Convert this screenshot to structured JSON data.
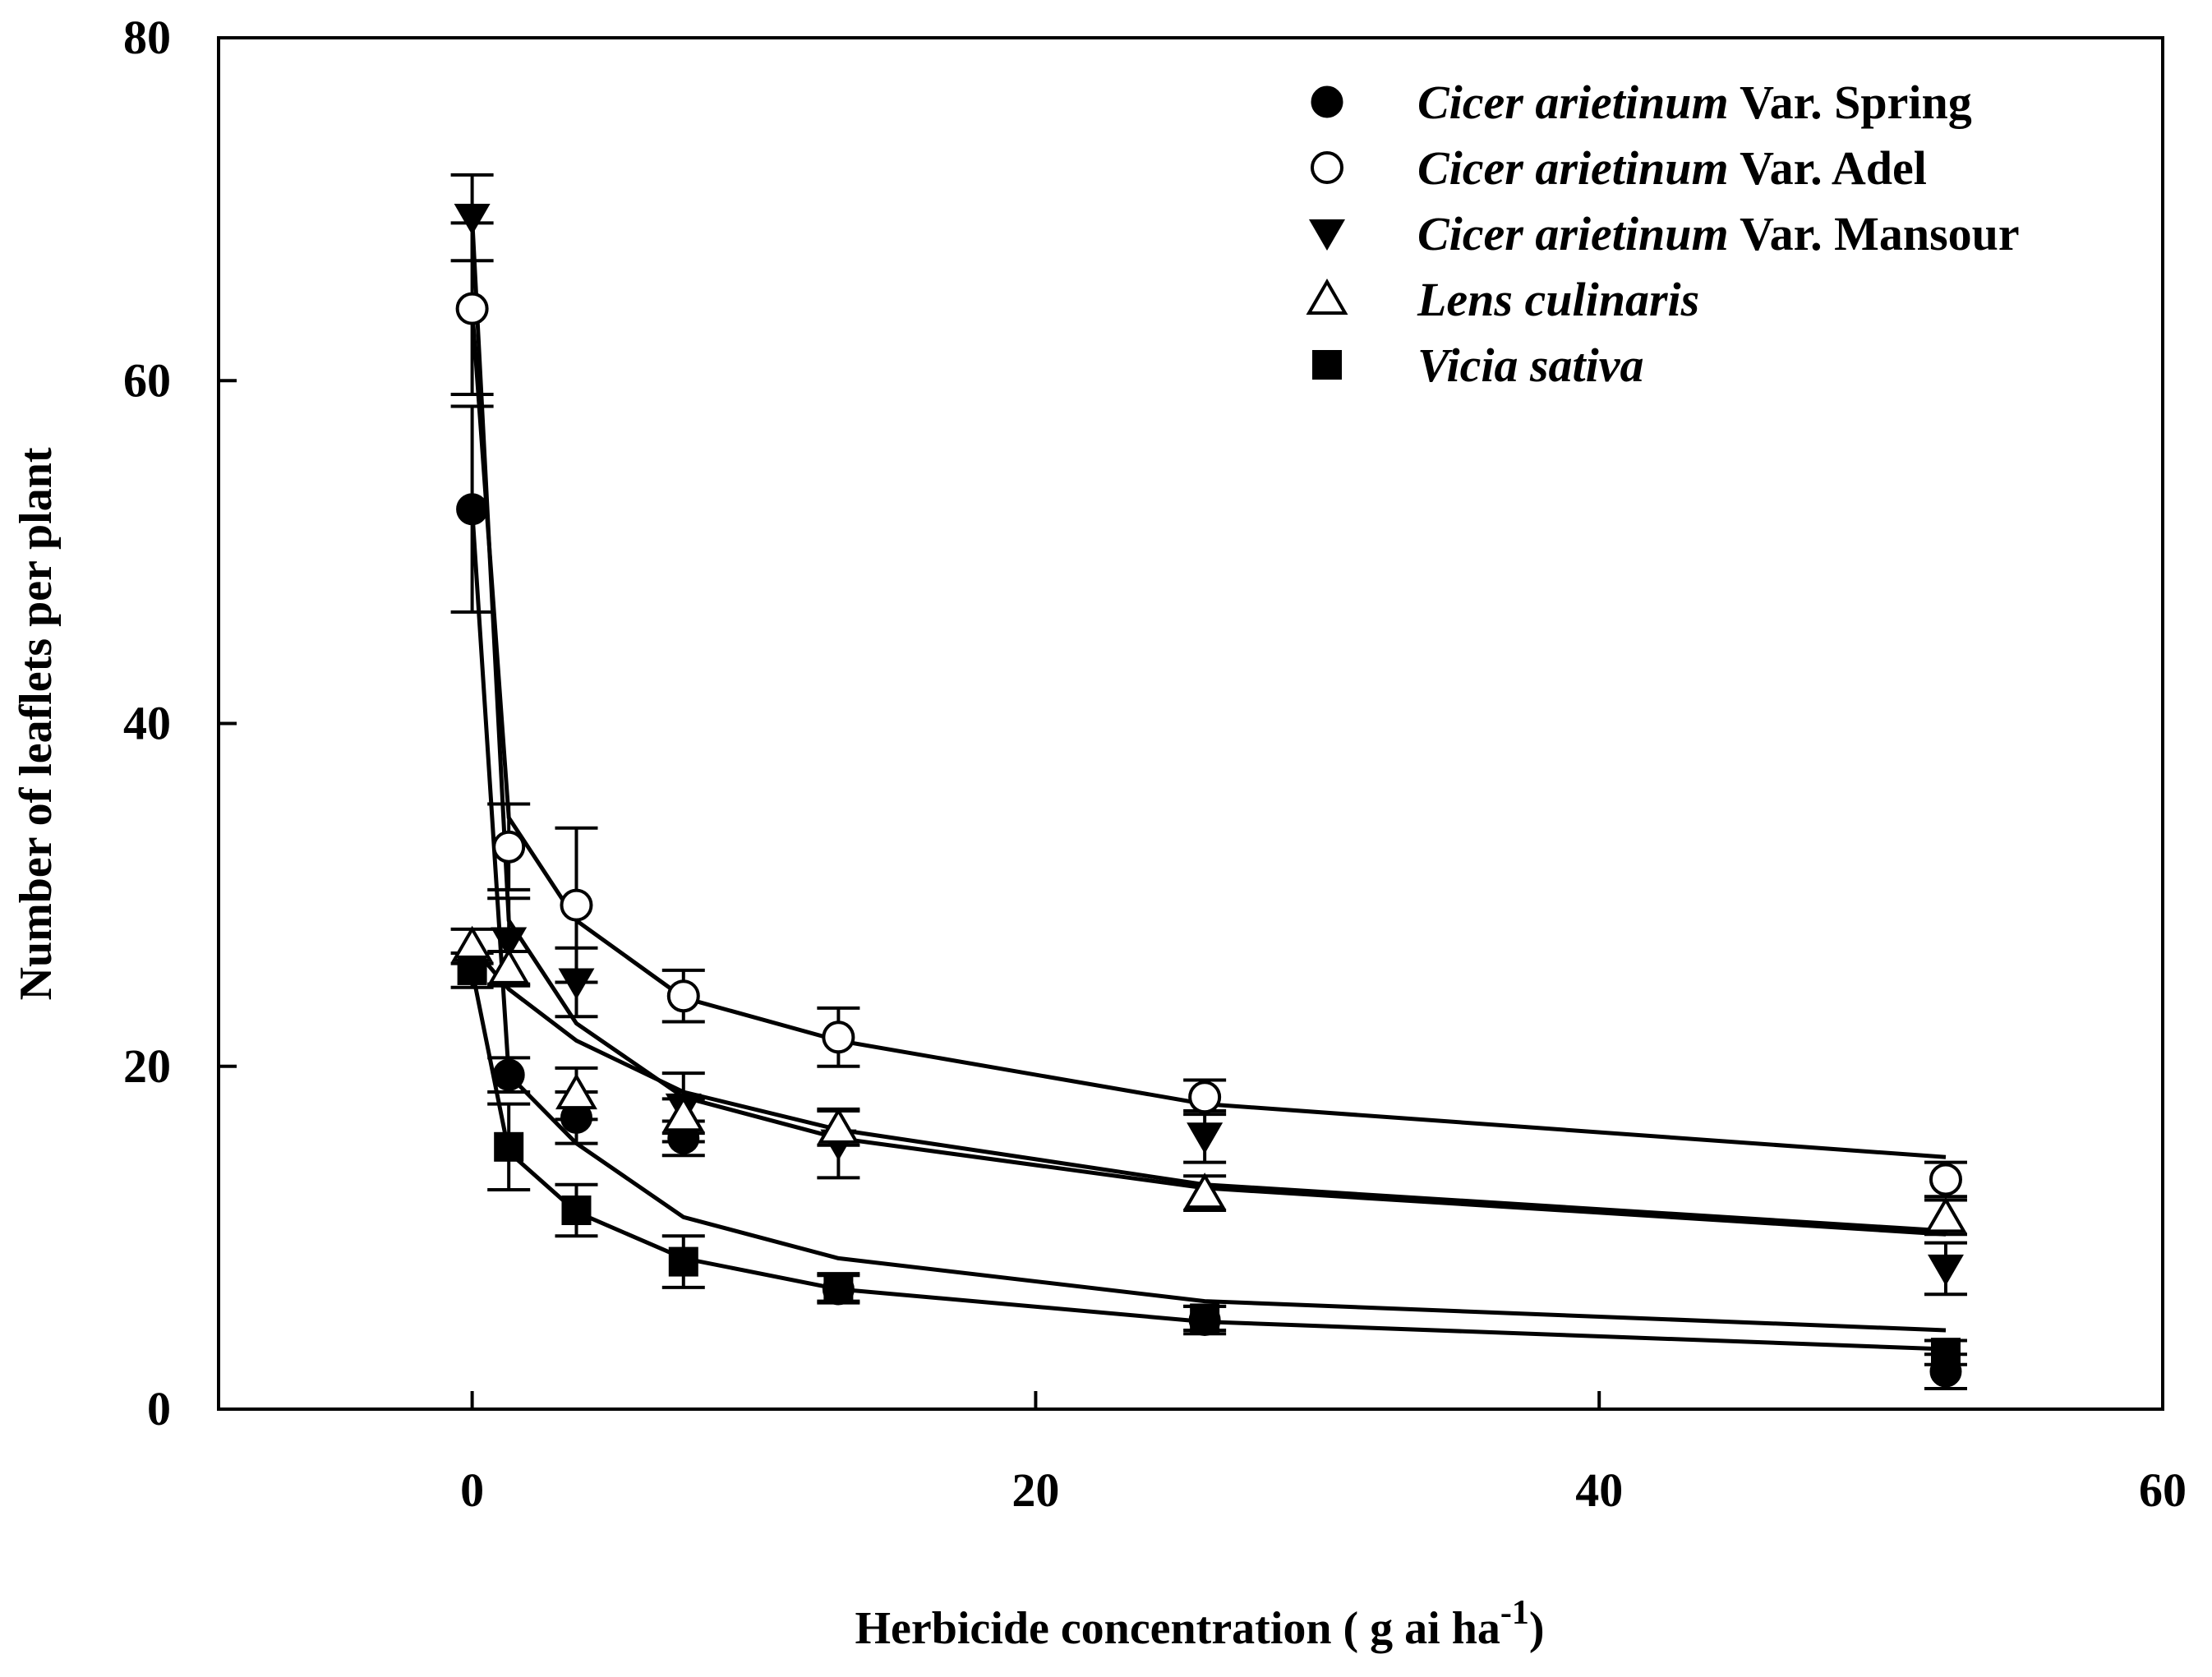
{
  "chart_data": {
    "type": "scatter",
    "xlabel": "Herbicide concentration ( g ai ha",
    "xlabel_superscript": "-1",
    "xlabel_close": ")",
    "ylabel": "Number of leaflets per plant",
    "xlim": [
      -9,
      60
    ],
    "ylim": [
      0,
      80
    ],
    "xticks": [
      0,
      20,
      40,
      60
    ],
    "yticks": [
      0,
      20,
      40,
      60,
      80
    ],
    "grid": false,
    "legend_position": "top-right",
    "marker_color": "#000000",
    "x": [
      0,
      1.3,
      3.7,
      7.5,
      13,
      26,
      52.3
    ],
    "series": [
      {
        "name": "Cicer arietinum",
        "name_suffix": " Var. Spring",
        "marker": "filled-circle",
        "values": [
          52.5,
          19.5,
          17.0,
          15.8,
          7.0,
          5.2,
          2.2
        ],
        "errors": [
          6.0,
          1.0,
          1.5,
          1.0,
          0.8,
          0.8,
          1.0
        ],
        "fit": [
          52.5,
          19.5,
          15.5,
          11.2,
          8.8,
          6.3,
          4.6
        ]
      },
      {
        "name": "Cicer arietinum",
        "name_suffix": " Var. Adel",
        "marker": "open-circle",
        "values": [
          64.2,
          32.8,
          29.4,
          24.1,
          21.7,
          18.2,
          13.4
        ],
        "errors": [
          5.0,
          2.5,
          4.5,
          1.5,
          1.7,
          1.0,
          1.0
        ],
        "fit": [
          64.2,
          34.5,
          28.5,
          24.0,
          21.5,
          17.8,
          14.7
        ]
      },
      {
        "name": "Cicer arietinum",
        "name_suffix": " Var. Mansour",
        "marker": "filled-triangle-down",
        "values": [
          69.5,
          27.3,
          24.9,
          17.6,
          15.5,
          15.9,
          8.2
        ],
        "errors": [
          2.5,
          2.5,
          2.0,
          2.0,
          2.0,
          1.5,
          1.5
        ],
        "fit": [
          69.5,
          28.5,
          22.5,
          18.2,
          15.8,
          12.9,
          10.2
        ]
      },
      {
        "name": "Lens culinaris",
        "name_suffix": "",
        "marker": "open-triangle-up",
        "values": [
          27.0,
          25.7,
          18.4,
          17.1,
          16.4,
          12.6,
          11.2
        ],
        "errors": [
          1.0,
          1.0,
          1.5,
          1.0,
          1.0,
          1.0,
          1.0
        ],
        "fit": [
          27.0,
          24.5,
          21.5,
          18.5,
          16.3,
          13.1,
          10.4
        ]
      },
      {
        "name": "Vicia sativa",
        "name_suffix": "",
        "marker": "filled-square",
        "values": [
          25.6,
          15.3,
          11.6,
          8.6,
          7.1,
          5.3,
          3.3
        ],
        "errors": [
          1.0,
          2.5,
          1.5,
          1.5,
          0.8,
          0.7,
          0.7
        ],
        "fit": [
          25.6,
          15.0,
          11.5,
          8.8,
          7.0,
          5.1,
          3.5
        ]
      }
    ]
  }
}
